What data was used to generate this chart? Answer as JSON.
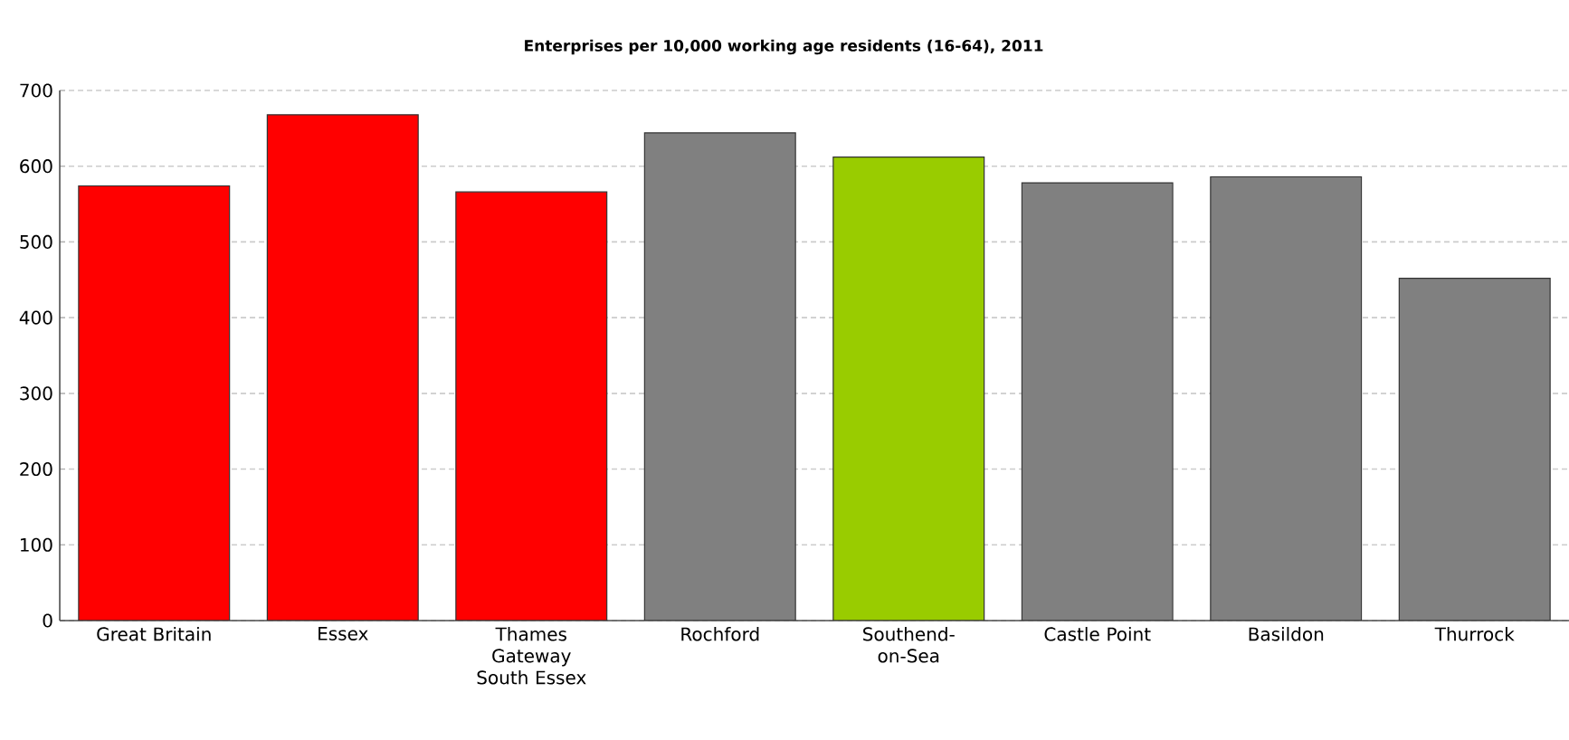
{
  "chart_data": {
    "type": "bar",
    "title": "Enterprises per 10,000 working age residents (16-64), 2011",
    "categories": [
      "Great Britain",
      "Essex",
      "Thames Gateway South Essex",
      "Rochford",
      "Southend-on-Sea",
      "Castle Point",
      "Basildon",
      "Thurrock"
    ],
    "values": [
      574,
      668,
      566,
      644,
      612,
      578,
      586,
      452
    ],
    "colors": [
      "#ff0000",
      "#ff0000",
      "#ff0000",
      "#808080",
      "#99cc00",
      "#808080",
      "#808080",
      "#808080"
    ],
    "ylim": [
      0,
      700
    ],
    "yticks": [
      0,
      100,
      200,
      300,
      400,
      500,
      600,
      700
    ],
    "grid": "y"
  }
}
